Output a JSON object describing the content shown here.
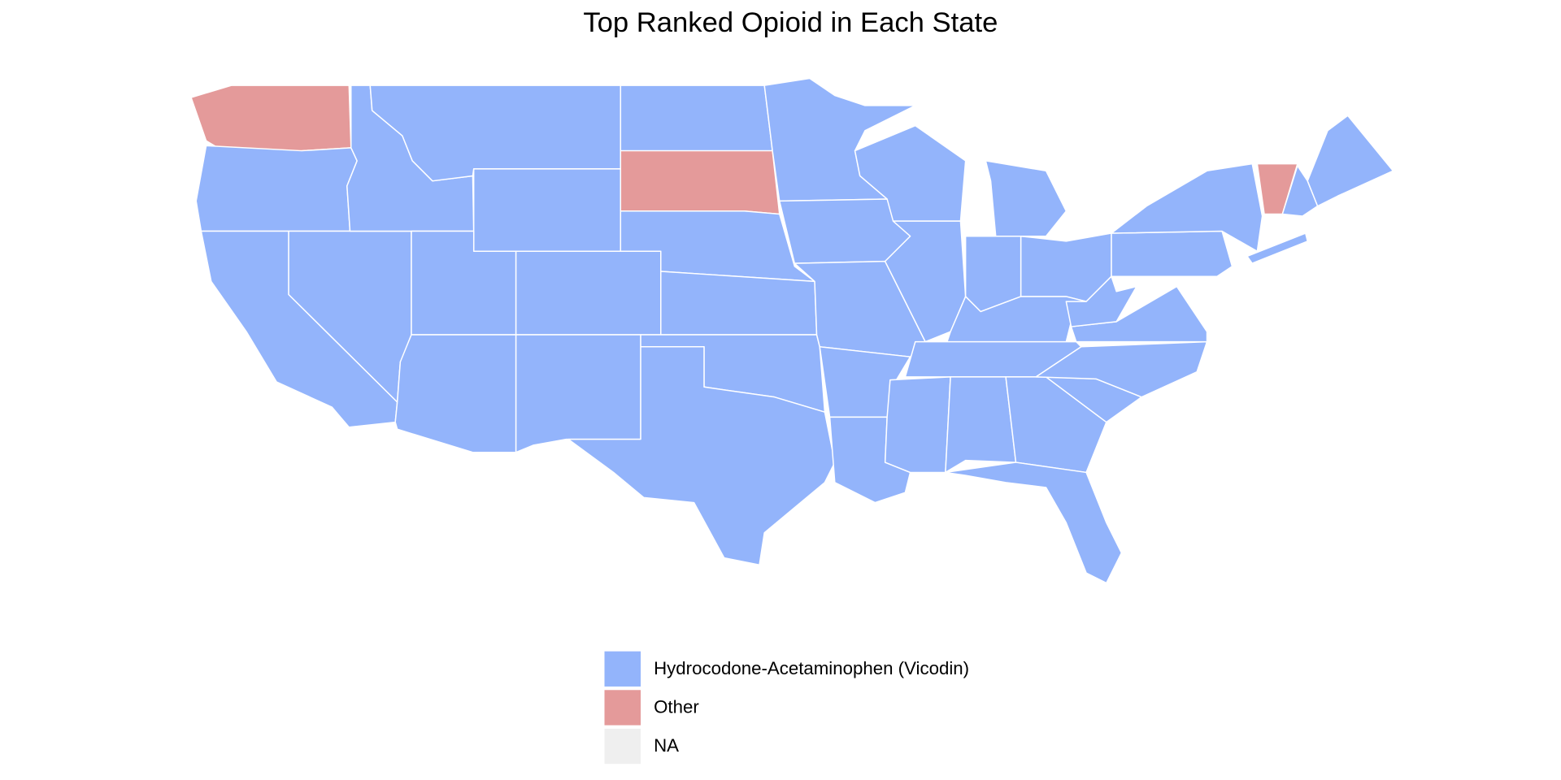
{
  "chart_data": {
    "type": "choropleth",
    "title": "Top Ranked Opioid in Each State",
    "series": [
      {
        "name": "Hydrocodone-Acetaminophen (Vicodin)",
        "color": "#93b4fb"
      },
      {
        "name": "Other",
        "color": "#e49a9a"
      },
      {
        "name": "NA",
        "color": "#efefef"
      }
    ]
  }
}
